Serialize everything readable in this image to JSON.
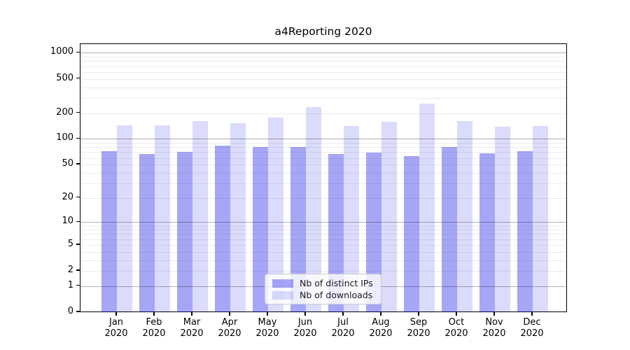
{
  "chart_data": {
    "type": "bar",
    "title": "a4Reporting 2020",
    "months": [
      "Jan",
      "Feb",
      "Mar",
      "Apr",
      "May",
      "Jun",
      "Jul",
      "Aug",
      "Sep",
      "Oct",
      "Nov",
      "Dec"
    ],
    "year": "2020",
    "categories": [
      "Jan 2020",
      "Feb 2020",
      "Mar 2020",
      "Apr 2020",
      "May 2020",
      "Jun 2020",
      "Jul 2020",
      "Aug 2020",
      "Sep 2020",
      "Oct 2020",
      "Nov 2020",
      "Dec 2020"
    ],
    "series": [
      {
        "name": "Nb of distinct IPs",
        "values": [
          72,
          66,
          70,
          83,
          80,
          81,
          67,
          69,
          63,
          80,
          68,
          72
        ],
        "hex": "#a6a6f7",
        "fill": "rgba(0,0,230,0.35)"
      },
      {
        "name": "Nb of downloads",
        "values": [
          145,
          145,
          160,
          152,
          178,
          233,
          142,
          158,
          260,
          161,
          138,
          142
        ],
        "hex": "#dbdbfb",
        "fill": "rgba(0,0,230,0.14)"
      }
    ],
    "yscale": "log1p",
    "y_ticks": [
      0,
      1,
      2,
      5,
      10,
      20,
      50,
      100,
      200,
      500,
      1000
    ],
    "major_gridlines": [
      1,
      10,
      100,
      1000
    ],
    "ylim": [
      0,
      1200
    ],
    "grid": true,
    "legend_position": "lower-center-inside",
    "xlabel": "",
    "ylabel": ""
  }
}
